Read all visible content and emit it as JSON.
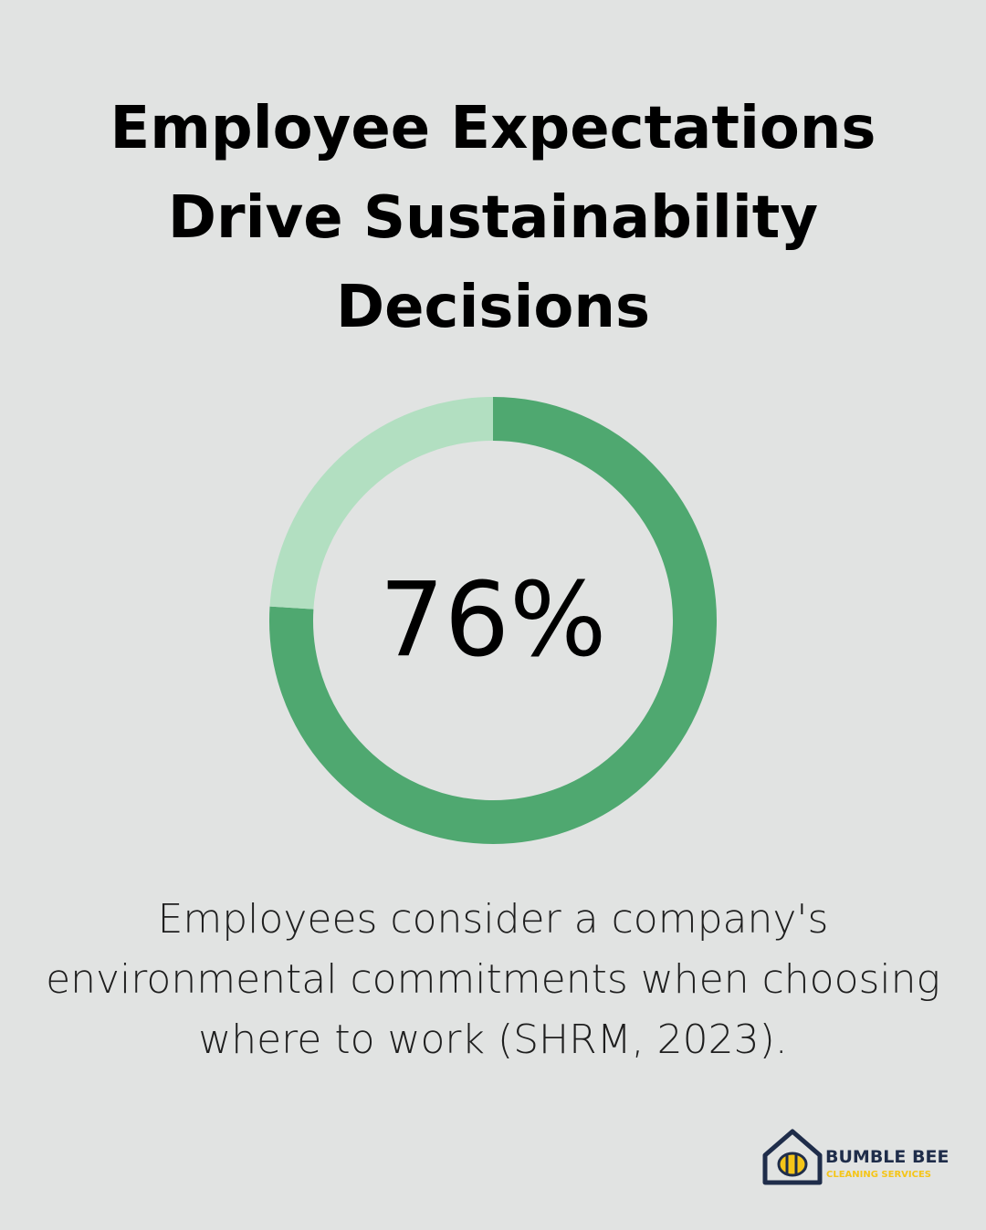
{
  "chart_data": {
    "type": "donut",
    "title": "Employee Expectations Drive Sustainability Decisions",
    "values": [
      76,
      24
    ],
    "value_labels": [
      "76%",
      null
    ],
    "colors": [
      "#4fa870",
      "#b2dfc1"
    ],
    "caption": "Employees consider a company's environmental commitments when choosing where to work (SHRM, 2023)."
  },
  "logo": {
    "name": "BUMBLE BEE",
    "tagline": "CLEANING SERVICES"
  }
}
